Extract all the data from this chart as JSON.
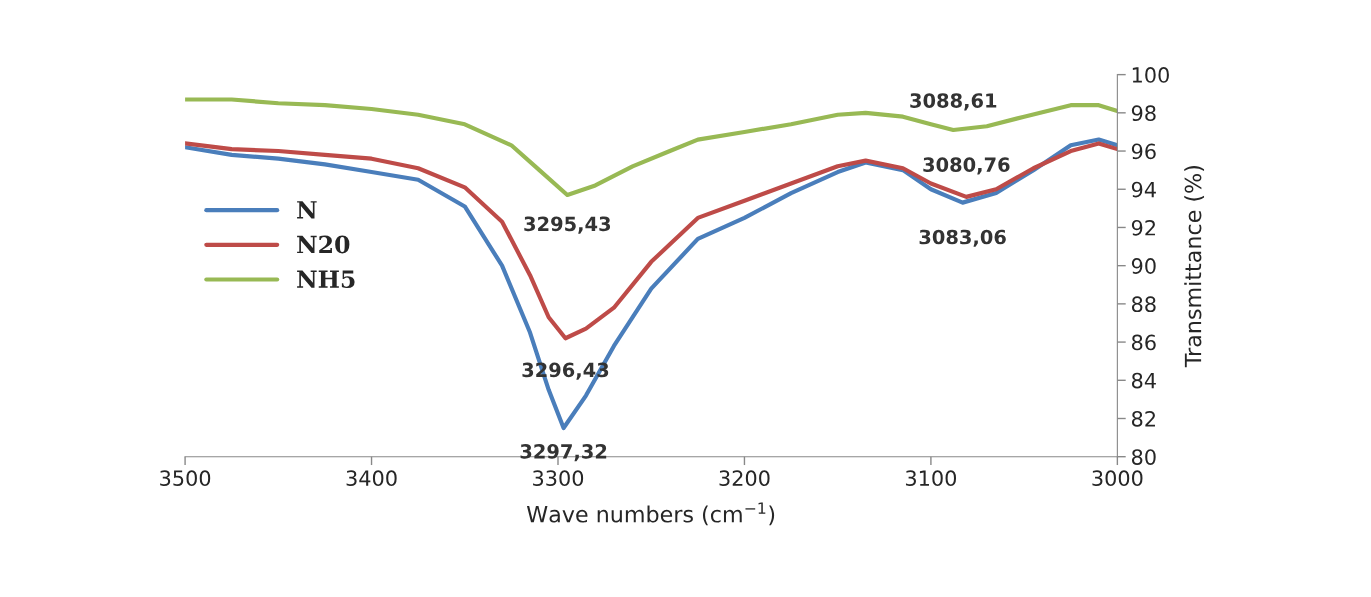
{
  "chart_data": {
    "type": "line",
    "xlabel": "Wave numbers (cm$^{−1}$)",
    "ylabel": "Transmittance (%)",
    "xlim": [
      3500,
      3000
    ],
    "xticks": [
      3500,
      3400,
      3300,
      3200,
      3100,
      3000
    ],
    "ylim": [
      80,
      100
    ],
    "yticks": [
      80,
      82,
      84,
      86,
      88,
      90,
      92,
      94,
      96,
      98,
      100
    ],
    "grid": false,
    "legend": "left",
    "marker": "none",
    "line_style": "solid",
    "series": [
      {
        "name": "N",
        "color": "#4a7ebb",
        "x": [
          3500,
          3475,
          3450,
          3425,
          3400,
          3375,
          3350,
          3330,
          3315,
          3305,
          3297,
          3285,
          3270,
          3250,
          3225,
          3200,
          3175,
          3150,
          3135,
          3115,
          3100,
          3083,
          3065,
          3045,
          3025,
          3010,
          3000
        ],
        "values": [
          96.2,
          95.8,
          95.6,
          95.3,
          94.9,
          94.5,
          93.1,
          90.0,
          86.5,
          83.5,
          81.5,
          83.2,
          85.8,
          88.8,
          91.4,
          92.5,
          93.8,
          94.9,
          95.4,
          95.0,
          94.0,
          93.3,
          93.8,
          95.0,
          96.3,
          96.6,
          96.3
        ]
      },
      {
        "name": "N20",
        "color": "#be4b48",
        "x": [
          3500,
          3475,
          3450,
          3425,
          3400,
          3375,
          3350,
          3330,
          3315,
          3305,
          3296,
          3285,
          3270,
          3250,
          3225,
          3200,
          3175,
          3150,
          3135,
          3115,
          3100,
          3081,
          3065,
          3045,
          3025,
          3010,
          3000
        ],
        "values": [
          96.4,
          96.1,
          96.0,
          95.8,
          95.6,
          95.1,
          94.1,
          92.3,
          89.5,
          87.3,
          86.2,
          86.7,
          87.8,
          90.2,
          92.5,
          93.4,
          94.3,
          95.2,
          95.5,
          95.1,
          94.3,
          93.6,
          94.0,
          95.1,
          96.0,
          96.4,
          96.1
        ]
      },
      {
        "name": "NH5",
        "color": "#98b954",
        "x": [
          3500,
          3475,
          3450,
          3425,
          3400,
          3375,
          3350,
          3325,
          3310,
          3295,
          3280,
          3260,
          3240,
          3225,
          3200,
          3175,
          3150,
          3135,
          3115,
          3100,
          3088,
          3070,
          3050,
          3025,
          3010,
          3000
        ],
        "values": [
          98.7,
          98.7,
          98.5,
          98.4,
          98.2,
          97.9,
          97.4,
          96.3,
          95.0,
          93.7,
          94.2,
          95.2,
          96.0,
          96.6,
          97.0,
          97.4,
          97.9,
          98.0,
          97.8,
          97.4,
          97.1,
          97.3,
          97.8,
          98.4,
          98.4,
          98.1
        ]
      }
    ],
    "annotations": [
      {
        "text": "3295,43",
        "x": 3295,
        "y": 93.7
      },
      {
        "text": "3296,43",
        "x": 3296,
        "y": 86.2
      },
      {
        "text": "3297,32",
        "x": 3297,
        "y": 81.5
      },
      {
        "text": "3088,61",
        "x": 3088,
        "y": 97.1
      },
      {
        "text": "3080,76",
        "x": 3081,
        "y": 93.6
      },
      {
        "text": "3083,06",
        "x": 3083,
        "y": 93.3
      }
    ]
  }
}
